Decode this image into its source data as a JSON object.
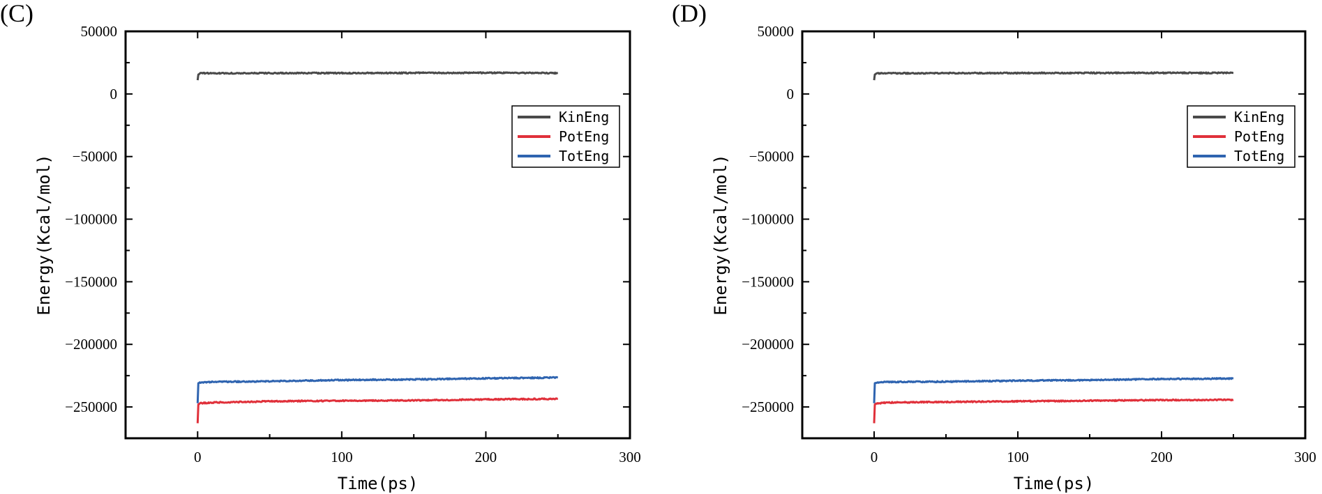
{
  "chart_data": [
    {
      "type": "line",
      "panel_label": "(C)",
      "xlabel": "Time(ps)",
      "ylabel": "Energy(Kcal/mol)",
      "xlim": [
        -50,
        300
      ],
      "ylim": [
        -275000,
        50000
      ],
      "xticks": [
        0,
        100,
        200,
        300
      ],
      "yticks": [
        50000,
        0,
        -50000,
        -100000,
        -150000,
        -200000,
        -250000
      ],
      "ytick_labels": [
        "50000",
        "0",
        "−50000",
        "−100000",
        "−150000",
        "−200000",
        "−250000"
      ],
      "grid": false,
      "legend": "right",
      "series": [
        {
          "name": "KinEng",
          "color": "#4a4a4a",
          "x": [
            0,
            0.5,
            2,
            10,
            50,
            100,
            150,
            200,
            250
          ],
          "y": [
            11000,
            15500,
            16500,
            16500,
            16600,
            16700,
            16800,
            16900,
            16700
          ]
        },
        {
          "name": "PotEng",
          "color": "#e0303a",
          "x": [
            0,
            0.5,
            2,
            10,
            50,
            100,
            150,
            200,
            250
          ],
          "y": [
            -263000,
            -248000,
            -247000,
            -246500,
            -245500,
            -245000,
            -244800,
            -244000,
            -243500
          ]
        },
        {
          "name": "TotEng",
          "color": "#2f64b0",
          "x": [
            0,
            0.5,
            2,
            10,
            50,
            100,
            150,
            200,
            250
          ],
          "y": [
            -247000,
            -231000,
            -230500,
            -230000,
            -229500,
            -228500,
            -228000,
            -227200,
            -226500
          ]
        }
      ]
    },
    {
      "type": "line",
      "panel_label": "(D)",
      "xlabel": "Time(ps)",
      "ylabel": "Energy(Kcal/mol)",
      "xlim": [
        -50,
        300
      ],
      "ylim": [
        -275000,
        50000
      ],
      "xticks": [
        0,
        100,
        200,
        300
      ],
      "yticks": [
        50000,
        0,
        -50000,
        -100000,
        -150000,
        -200000,
        -250000
      ],
      "ytick_labels": [
        "50000",
        "0",
        "−50000",
        "−100000",
        "−150000",
        "−200000",
        "−250000"
      ],
      "grid": false,
      "legend": "right",
      "series": [
        {
          "name": "KinEng",
          "color": "#4a4a4a",
          "x": [
            0,
            0.5,
            2,
            10,
            50,
            100,
            150,
            200,
            250
          ],
          "y": [
            11000,
            15500,
            16500,
            16500,
            16600,
            16700,
            16800,
            16800,
            16800
          ]
        },
        {
          "name": "PotEng",
          "color": "#e0303a",
          "x": [
            0,
            0.5,
            2,
            10,
            50,
            100,
            150,
            200,
            250
          ],
          "y": [
            -263000,
            -248000,
            -247000,
            -246500,
            -246000,
            -245500,
            -245000,
            -244500,
            -244300
          ]
        },
        {
          "name": "TotEng",
          "color": "#2f64b0",
          "x": [
            0,
            0.5,
            2,
            10,
            50,
            100,
            150,
            200,
            250
          ],
          "y": [
            -247000,
            -231000,
            -230500,
            -230000,
            -229800,
            -229000,
            -228500,
            -227700,
            -227300
          ]
        }
      ]
    }
  ]
}
